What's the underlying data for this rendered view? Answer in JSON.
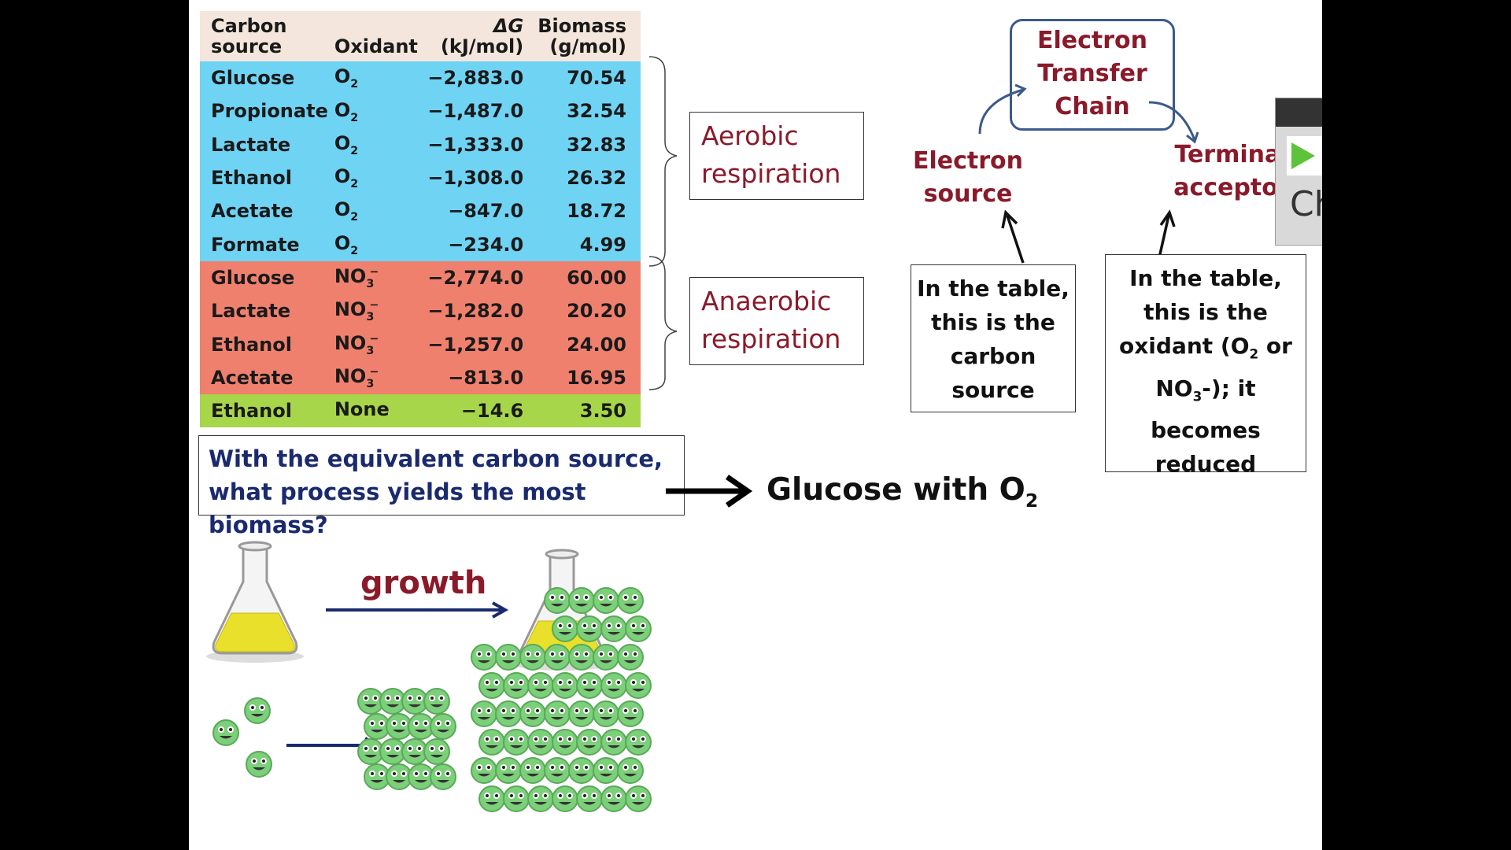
{
  "table": {
    "headers": {
      "carbon_line1": "Carbon",
      "carbon_line2": "source",
      "oxidant": "Oxidant",
      "dg_line1": "ΔG",
      "dg_line2": "(kJ/mol)",
      "biomass_line1": "Biomass",
      "biomass_line2": "(g/mol)"
    },
    "rows": [
      {
        "source": "Glucose",
        "oxidant": "O",
        "sub": "2",
        "sup": "",
        "dg": "−2,883.0",
        "biomass": "70.54",
        "group": "aer"
      },
      {
        "source": "Propionate",
        "oxidant": "O",
        "sub": "2",
        "sup": "",
        "dg": "−1,487.0",
        "biomass": "32.54",
        "group": "aer"
      },
      {
        "source": "Lactate",
        "oxidant": "O",
        "sub": "2",
        "sup": "",
        "dg": "−1,333.0",
        "biomass": "32.83",
        "group": "aer"
      },
      {
        "source": "Ethanol",
        "oxidant": "O",
        "sub": "2",
        "sup": "",
        "dg": "−1,308.0",
        "biomass": "26.32",
        "group": "aer"
      },
      {
        "source": "Acetate",
        "oxidant": "O",
        "sub": "2",
        "sup": "",
        "dg": "−847.0",
        "biomass": "18.72",
        "group": "aer"
      },
      {
        "source": "Formate",
        "oxidant": "O",
        "sub": "2",
        "sup": "",
        "dg": "−234.0",
        "biomass": "4.99",
        "group": "aer"
      },
      {
        "source": "Glucose",
        "oxidant": "NO",
        "sub": "3",
        "sup": "−",
        "dg": "−2,774.0",
        "biomass": "60.00",
        "group": "ana"
      },
      {
        "source": "Lactate",
        "oxidant": "NO",
        "sub": "3",
        "sup": "−",
        "dg": "−1,282.0",
        "biomass": "20.20",
        "group": "ana"
      },
      {
        "source": "Ethanol",
        "oxidant": "NO",
        "sub": "3",
        "sup": "−",
        "dg": "−1,257.0",
        "biomass": "24.00",
        "group": "ana"
      },
      {
        "source": "Acetate",
        "oxidant": "NO",
        "sub": "3",
        "sup": "−",
        "dg": "−813.0",
        "biomass": "16.95",
        "group": "ana"
      },
      {
        "source": "Ethanol",
        "oxidant": "None",
        "sub": "",
        "sup": "",
        "dg": "−14.6",
        "biomass": "3.50",
        "group": "none"
      }
    ]
  },
  "aerobic": {
    "line1": "Aerobic",
    "line2": "respiration"
  },
  "anaerobic": {
    "line1": "Anaerobic",
    "line2": "respiration"
  },
  "etc": {
    "line1": "Electron",
    "line2": "Transfer",
    "line3": "Chain"
  },
  "electron_source": {
    "line1": "Electron",
    "line2": "source"
  },
  "terminal_acceptor": {
    "line1": "Terminal",
    "line2": "acceptor"
  },
  "carbon_box": {
    "line1": "In the table,",
    "line2": "this is the",
    "line3": "carbon",
    "line4": "source"
  },
  "oxidant_box": {
    "line1": "In the table,",
    "line2": "this is the",
    "line3a": "oxidant (O",
    "line3sub": "2",
    "line3b": " or",
    "line4a": "NO",
    "line4sub": "3",
    "line4b": "-); it",
    "line5": "becomes",
    "line6": "reduced"
  },
  "question": {
    "line1": "With the equivalent carbon source,",
    "line2": "what process yields the most biomass?"
  },
  "answer": {
    "text": "Glucose with O",
    "sub": "2"
  },
  "growth_label": "growth",
  "side_button": {
    "label": "Ch"
  },
  "colors": {
    "aerobic": "#6fd3f4",
    "anaerobic": "#f0806e",
    "none": "#a8d64a",
    "maroon": "#8a1a2a",
    "question": "#1a2a6e"
  },
  "icons": {
    "flask": "flask-icon",
    "microbe": "microbe-icon",
    "play": "play-icon"
  }
}
